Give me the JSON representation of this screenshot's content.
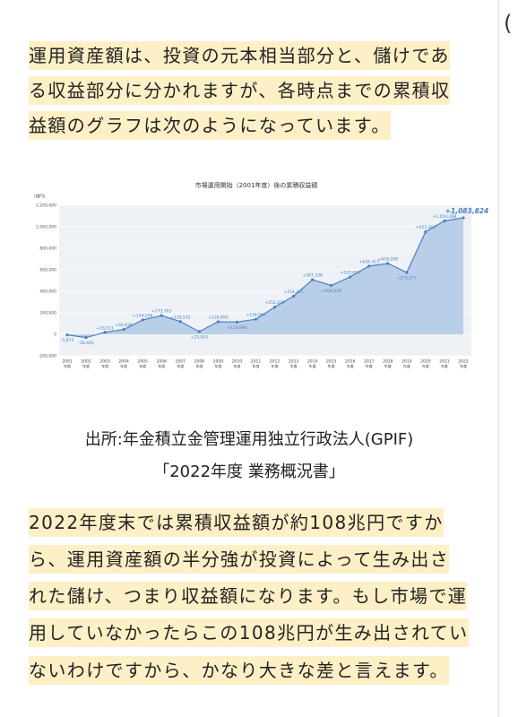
{
  "paragraphs": [
    {
      "lines": [
        "運用資産額は、投資の元本相当部分と、儲けであ",
        "る収益部分に分かれますが、各時点までの累積収",
        "益額のグラフは次のようになっています。"
      ]
    },
    {
      "lines": [
        "2022年度末では累積収益額が約108兆円ですか",
        "ら、運用資産額の半分強が投資によって生み出さ",
        "れた儲け、つまり収益額になります。もし市場で運",
        "用していなかったらこの108兆円が生み出されてい",
        "ないわけですから、かなり大きな差と言えます。"
      ]
    }
  ],
  "source": {
    "lines": [
      "出所:年金積立金管理運用独立行政法人(GPIF)",
      "「2022年度 業務概況書」"
    ]
  },
  "side": {
    "glyph": "("
  },
  "chart_data": {
    "type": "area",
    "title": "市場運用開始（2001年度）後の累積収益額",
    "y_unit": "(億円)",
    "categories": [
      "2001",
      "2002",
      "2003",
      "2004",
      "2005",
      "2006",
      "2007",
      "2008",
      "2009",
      "2010",
      "2011",
      "2012",
      "2013",
      "2014",
      "2015",
      "2016",
      "2017",
      "2018",
      "2019",
      "2020",
      "2021",
      "2022"
    ],
    "category_suffix": "年度",
    "values": [
      -5874,
      -30405,
      18511,
      44638,
      134258,
      173703,
      118525,
      25043,
      116893,
      113894,
      139986,
      252209,
      354415,
      507338,
      454239,
      533603,
      634413,
      658208,
      575377,
      953363,
      1054288,
      1083824
    ],
    "value_labels": [
      "-5,874",
      "-30,405",
      "+18,511",
      "+44,638",
      "+134,258",
      "+173,703",
      "+118,525",
      "+25,043",
      "+116,893",
      "+113,894",
      "+139,986",
      "+252,209",
      "+354,415",
      "+507,338",
      "+454,239",
      "+533,603",
      "+634,413",
      "+658,208",
      "+575,377",
      "+953,363",
      "+1,054,288",
      "+1,083,824"
    ],
    "color": "#4a80c0",
    "fill": "#b9cfe8",
    "ylim": [
      -200000,
      1200000
    ],
    "yticks": [
      {
        "value": -200000,
        "label": "-200,000"
      },
      0,
      {
        "value": 200000,
        "label": "200,000"
      },
      {
        "value": 400000,
        "label": "400,000"
      },
      {
        "value": 600000,
        "label": "600,000"
      },
      {
        "value": 800000,
        "label": "800,000"
      },
      {
        "value": 1000000,
        "label": "1,000,000"
      },
      {
        "value": 1200000,
        "label": "1,200,000"
      }
    ],
    "grid": true
  }
}
